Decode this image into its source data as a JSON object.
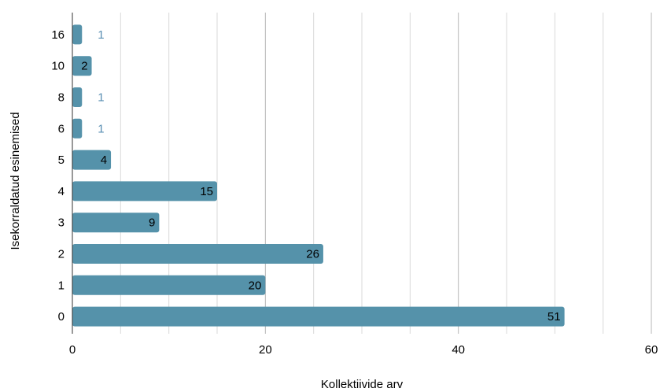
{
  "chart_data": {
    "type": "bar",
    "orientation": "horizontal",
    "title": "",
    "xlabel": "Kollektiivide arv",
    "ylabel": "Isekorraldatud esinemised",
    "xlim": [
      0,
      60
    ],
    "xticks": [
      "0",
      "20",
      "40",
      "60"
    ],
    "categories": [
      "16",
      "10",
      "8",
      "6",
      "5",
      "4",
      "3",
      "2",
      "1",
      "0"
    ],
    "values": [
      1,
      2,
      1,
      1,
      4,
      15,
      9,
      26,
      20,
      51
    ],
    "data_labels": [
      "1",
      "2",
      "1",
      "1",
      "4",
      "15",
      "9",
      "26",
      "20",
      "51"
    ],
    "grid": "vertical",
    "bar_color": "#5592aa",
    "outside_label_color": "#5a8fb3",
    "inside_label_color": "#000000",
    "gridline_color": "#d9d9d9",
    "major_gridline_color": "#b7b7b7"
  }
}
